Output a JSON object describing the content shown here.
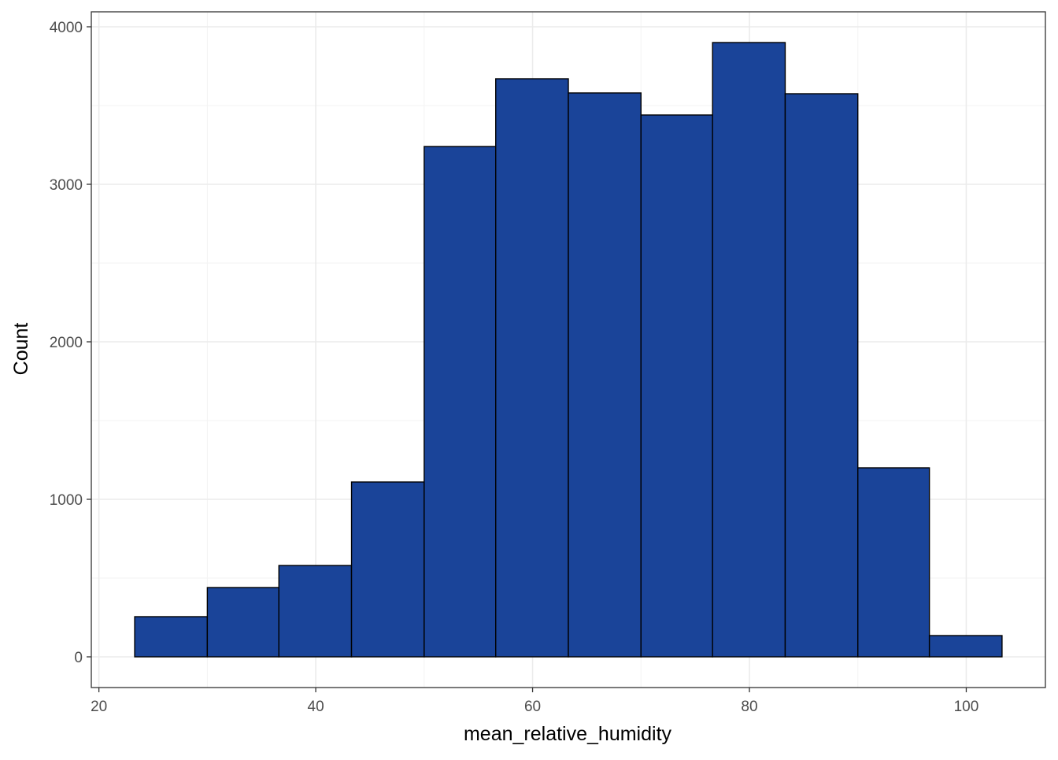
{
  "chart_data": {
    "type": "bar",
    "subtype": "histogram",
    "title": "",
    "xlabel": "mean_relative_humidity",
    "ylabel": "Count",
    "bins": [
      {
        "x0": 23.3,
        "x1": 30.0,
        "count": 255
      },
      {
        "x0": 30.0,
        "x1": 36.6,
        "count": 440
      },
      {
        "x0": 36.6,
        "x1": 43.3,
        "count": 580
      },
      {
        "x0": 43.3,
        "x1": 50.0,
        "count": 1110
      },
      {
        "x0": 50.0,
        "x1": 56.6,
        "count": 3240
      },
      {
        "x0": 56.6,
        "x1": 63.3,
        "count": 3670
      },
      {
        "x0": 63.3,
        "x1": 70.0,
        "count": 3580
      },
      {
        "x0": 70.0,
        "x1": 76.6,
        "count": 3440
      },
      {
        "x0": 76.6,
        "x1": 83.3,
        "count": 3900
      },
      {
        "x0": 83.3,
        "x1": 90.0,
        "count": 3575
      },
      {
        "x0": 90.0,
        "x1": 96.6,
        "count": 1200
      },
      {
        "x0": 96.6,
        "x1": 103.3,
        "count": 135
      }
    ],
    "xlim": [
      19.3,
      107.3
    ],
    "ylim": [
      -195,
      4095
    ],
    "x_ticks": [
      20,
      40,
      60,
      80,
      100
    ],
    "y_ticks": [
      0,
      1000,
      2000,
      3000,
      4000
    ],
    "grid": true,
    "legend": "none",
    "colors": {
      "bar_fill": "#1a4499",
      "bar_stroke": "#000000",
      "grid_major": "#ebebeb",
      "grid_minor": "#f3f3f3",
      "panel_border": "#333333"
    }
  }
}
